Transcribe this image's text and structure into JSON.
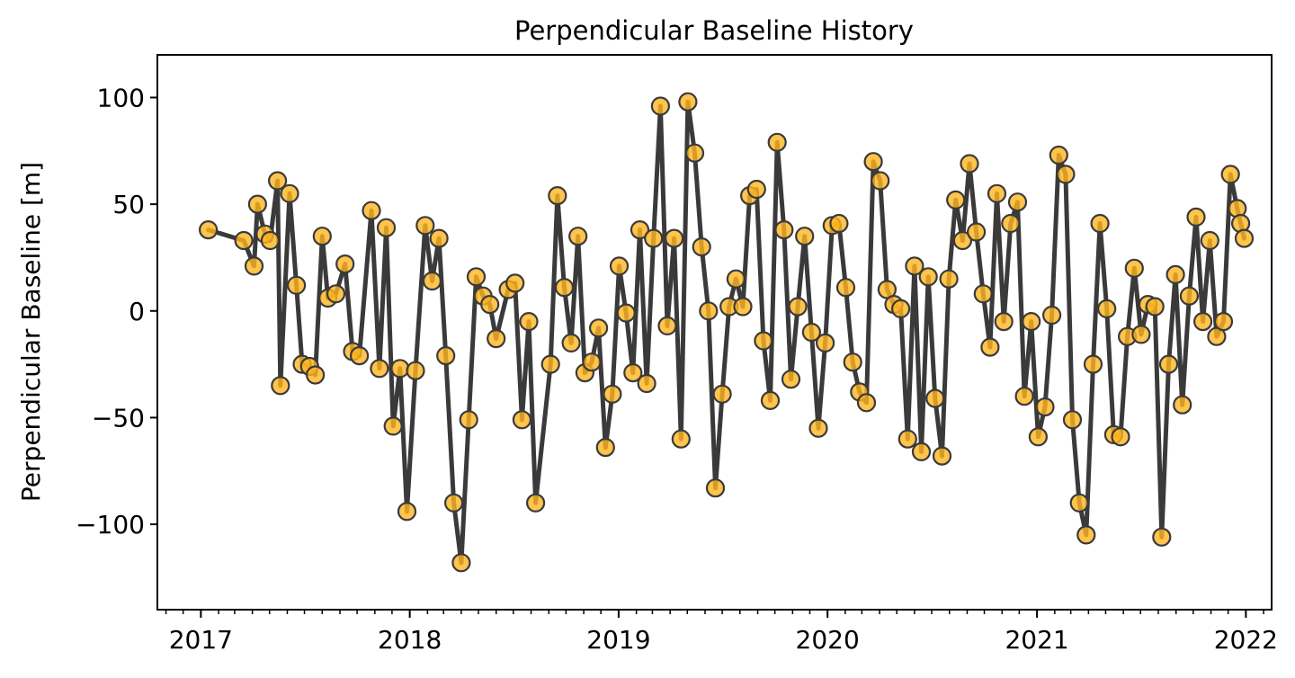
{
  "chart_data": {
    "type": "line",
    "title": "Perpendicular Baseline History",
    "xlabel": "",
    "ylabel": "Perpendicular Baseline [m]",
    "xlim": [
      "2016-10-17",
      "2022-02-15"
    ],
    "ylim": [
      -140,
      120
    ],
    "x_ticks": [
      "2017",
      "2018",
      "2019",
      "2020",
      "2021",
      "2022"
    ],
    "y_ticks": [
      100,
      50,
      0,
      -50,
      -100
    ],
    "y_tick_labels": [
      "100",
      "50",
      "0",
      "−50",
      "−100"
    ],
    "grid": false,
    "legend": false,
    "colors": {
      "line": "#3a3a3a",
      "marker_fill": "#ffb520",
      "marker_edge": "#3a3a3a"
    },
    "series": [
      {
        "points": [
          [
            "2017-01-14",
            38
          ],
          [
            "2017-03-17",
            33
          ],
          [
            "2017-04-04",
            21
          ],
          [
            "2017-04-10",
            50
          ],
          [
            "2017-04-23",
            36
          ],
          [
            "2017-05-02",
            33
          ],
          [
            "2017-05-15",
            61
          ],
          [
            "2017-05-20",
            -35
          ],
          [
            "2017-06-05",
            55
          ],
          [
            "2017-06-17",
            12
          ],
          [
            "2017-06-27",
            -25
          ],
          [
            "2017-07-10",
            -26
          ],
          [
            "2017-07-20",
            -30
          ],
          [
            "2017-08-01",
            35
          ],
          [
            "2017-08-11",
            6
          ],
          [
            "2017-08-25",
            8
          ],
          [
            "2017-09-10",
            22
          ],
          [
            "2017-09-23",
            -19
          ],
          [
            "2017-10-05",
            -21
          ],
          [
            "2017-10-26",
            47
          ],
          [
            "2017-11-09",
            -27
          ],
          [
            "2017-11-21",
            39
          ],
          [
            "2017-12-03",
            -54
          ],
          [
            "2017-12-15",
            -27
          ],
          [
            "2017-12-27",
            -94
          ],
          [
            "2018-01-11",
            -28
          ],
          [
            "2018-01-28",
            40
          ],
          [
            "2018-02-09",
            14
          ],
          [
            "2018-02-21",
            34
          ],
          [
            "2018-03-05",
            -21
          ],
          [
            "2018-03-19",
            -90
          ],
          [
            "2018-04-01",
            -118
          ],
          [
            "2018-04-14",
            -51
          ],
          [
            "2018-04-27",
            16
          ],
          [
            "2018-05-09",
            7
          ],
          [
            "2018-05-21",
            3
          ],
          [
            "2018-06-01",
            -13
          ],
          [
            "2018-06-22",
            10
          ],
          [
            "2018-07-04",
            13
          ],
          [
            "2018-07-16",
            -51
          ],
          [
            "2018-07-28",
            -5
          ],
          [
            "2018-08-09",
            -90
          ],
          [
            "2018-09-04",
            -25
          ],
          [
            "2018-09-16",
            54
          ],
          [
            "2018-09-28",
            11
          ],
          [
            "2018-10-10",
            -15
          ],
          [
            "2018-10-22",
            35
          ],
          [
            "2018-11-03",
            -29
          ],
          [
            "2018-11-15",
            -24
          ],
          [
            "2018-11-27",
            -8
          ],
          [
            "2018-12-09",
            -64
          ],
          [
            "2018-12-21",
            -39
          ],
          [
            "2019-01-02",
            21
          ],
          [
            "2019-01-14",
            -1
          ],
          [
            "2019-01-26",
            -29
          ],
          [
            "2019-02-07",
            38
          ],
          [
            "2019-02-19",
            -34
          ],
          [
            "2019-03-03",
            34
          ],
          [
            "2019-03-15",
            96
          ],
          [
            "2019-03-27",
            -7
          ],
          [
            "2019-04-08",
            34
          ],
          [
            "2019-04-20",
            -60
          ],
          [
            "2019-05-02",
            98
          ],
          [
            "2019-05-14",
            74
          ],
          [
            "2019-05-26",
            30
          ],
          [
            "2019-06-07",
            0
          ],
          [
            "2019-06-19",
            -83
          ],
          [
            "2019-07-01",
            -39
          ],
          [
            "2019-07-13",
            2
          ],
          [
            "2019-07-25",
            15
          ],
          [
            "2019-08-06",
            2
          ],
          [
            "2019-08-18",
            54
          ],
          [
            "2019-08-30",
            57
          ],
          [
            "2019-09-11",
            -14
          ],
          [
            "2019-09-23",
            -42
          ],
          [
            "2019-10-05",
            79
          ],
          [
            "2019-10-17",
            38
          ],
          [
            "2019-10-29",
            -32
          ],
          [
            "2019-11-10",
            2
          ],
          [
            "2019-11-22",
            35
          ],
          [
            "2019-12-04",
            -10
          ],
          [
            "2019-12-16",
            -55
          ],
          [
            "2019-12-28",
            -15
          ],
          [
            "2020-01-09",
            40
          ],
          [
            "2020-01-21",
            41
          ],
          [
            "2020-02-02",
            11
          ],
          [
            "2020-02-14",
            -24
          ],
          [
            "2020-02-26",
            -38
          ],
          [
            "2020-03-09",
            -43
          ],
          [
            "2020-03-21",
            70
          ],
          [
            "2020-04-02",
            61
          ],
          [
            "2020-04-14",
            10
          ],
          [
            "2020-04-26",
            3
          ],
          [
            "2020-05-08",
            1
          ],
          [
            "2020-05-20",
            -60
          ],
          [
            "2020-06-01",
            21
          ],
          [
            "2020-06-13",
            -66
          ],
          [
            "2020-06-25",
            16
          ],
          [
            "2020-07-07",
            -41
          ],
          [
            "2020-07-19",
            -68
          ],
          [
            "2020-07-31",
            15
          ],
          [
            "2020-08-12",
            52
          ],
          [
            "2020-08-24",
            33
          ],
          [
            "2020-09-05",
            69
          ],
          [
            "2020-09-17",
            37
          ],
          [
            "2020-09-29",
            8
          ],
          [
            "2020-10-11",
            -17
          ],
          [
            "2020-10-23",
            55
          ],
          [
            "2020-11-04",
            -5
          ],
          [
            "2020-11-16",
            41
          ],
          [
            "2020-11-28",
            51
          ],
          [
            "2020-12-10",
            -40
          ],
          [
            "2020-12-22",
            -5
          ],
          [
            "2021-01-03",
            -59
          ],
          [
            "2021-01-15",
            -45
          ],
          [
            "2021-01-27",
            -2
          ],
          [
            "2021-02-08",
            73
          ],
          [
            "2021-02-20",
            64
          ],
          [
            "2021-03-04",
            -51
          ],
          [
            "2021-03-16",
            -90
          ],
          [
            "2021-03-28",
            -105
          ],
          [
            "2021-04-09",
            -25
          ],
          [
            "2021-04-21",
            41
          ],
          [
            "2021-05-03",
            1
          ],
          [
            "2021-05-15",
            -58
          ],
          [
            "2021-05-27",
            -59
          ],
          [
            "2021-06-08",
            -12
          ],
          [
            "2021-06-20",
            20
          ],
          [
            "2021-07-02",
            -11
          ],
          [
            "2021-07-14",
            3
          ],
          [
            "2021-07-26",
            2
          ],
          [
            "2021-08-07",
            -106
          ],
          [
            "2021-08-19",
            -25
          ],
          [
            "2021-08-31",
            17
          ],
          [
            "2021-09-12",
            -44
          ],
          [
            "2021-09-24",
            7
          ],
          [
            "2021-10-06",
            44
          ],
          [
            "2021-10-18",
            -5
          ],
          [
            "2021-10-30",
            33
          ],
          [
            "2021-11-11",
            -12
          ],
          [
            "2021-11-23",
            -5
          ],
          [
            "2021-12-05",
            64
          ],
          [
            "2021-12-17",
            48
          ],
          [
            "2021-12-23",
            41
          ],
          [
            "2021-12-29",
            34
          ]
        ]
      }
    ]
  }
}
